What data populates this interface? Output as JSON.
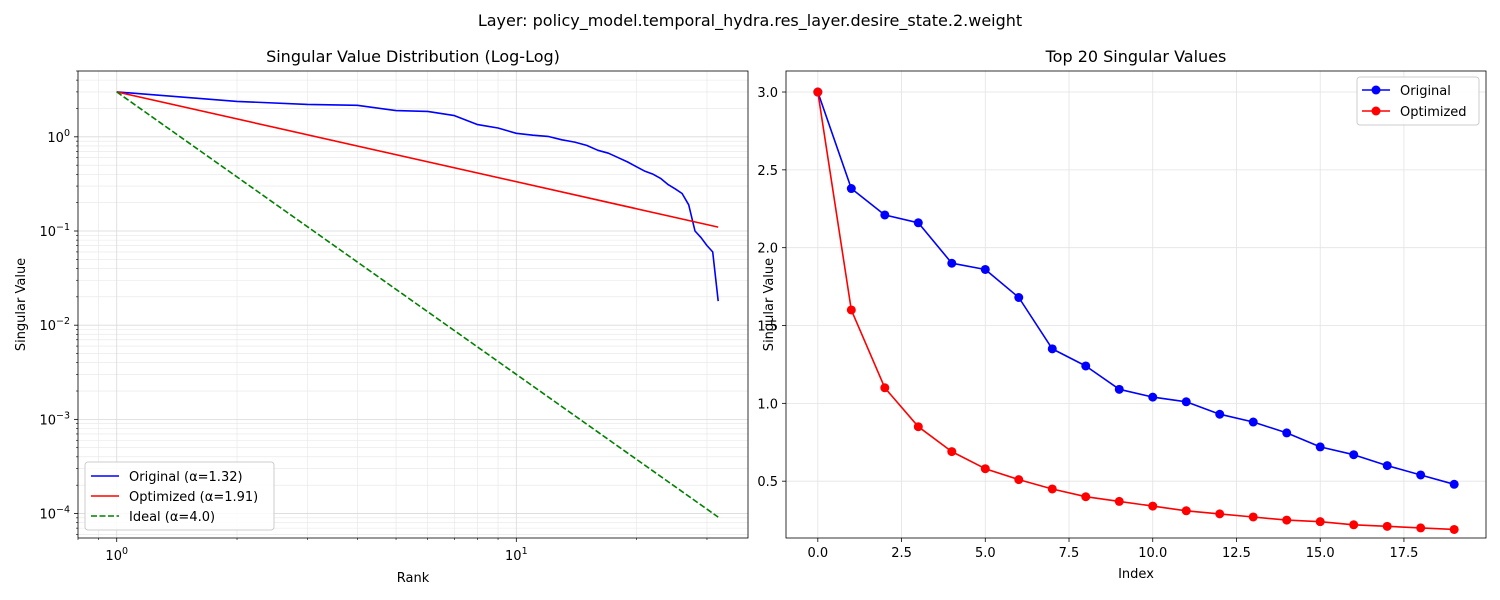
{
  "figure_title": "Layer: policy_model.temporal_hydra.res_layer.desire_state.2.weight",
  "chart_data": [
    {
      "type": "line",
      "title": "Singular Value Distribution (Log-Log)",
      "xlabel": "Rank",
      "ylabel": "Singular Value",
      "xscale": "log",
      "yscale": "log",
      "xlim": [
        0.8,
        38
      ],
      "ylim": [
        5.5e-05,
        5
      ],
      "grid": true,
      "legend": "lower-left",
      "x_ticks": [
        {
          "value": 1,
          "base": "10",
          "exp": "0"
        },
        {
          "value": 10,
          "base": "10",
          "exp": "1"
        }
      ],
      "y_ticks": [
        {
          "value": 0.0001,
          "base": "10",
          "exp": "−4"
        },
        {
          "value": 0.001,
          "base": "10",
          "exp": "−3"
        },
        {
          "value": 0.01,
          "base": "10",
          "exp": "−2"
        },
        {
          "value": 0.1,
          "base": "10",
          "exp": "−1"
        },
        {
          "value": 1,
          "base": "10",
          "exp": "0"
        }
      ],
      "series": [
        {
          "name": "Original (α=1.32)",
          "color": "#0000ff",
          "dash": "solid",
          "x": [
            1,
            2,
            3,
            4,
            5,
            6,
            7,
            8,
            9,
            10,
            11,
            12,
            13,
            14,
            15,
            16,
            17,
            18,
            19,
            20,
            21,
            22,
            23,
            24,
            25,
            26,
            27,
            28,
            29,
            30,
            31,
            32
          ],
          "y": [
            3.0,
            2.38,
            2.21,
            2.16,
            1.9,
            1.86,
            1.68,
            1.35,
            1.24,
            1.09,
            1.04,
            1.01,
            0.93,
            0.88,
            0.81,
            0.72,
            0.67,
            0.6,
            0.54,
            0.48,
            0.43,
            0.4,
            0.36,
            0.31,
            0.28,
            0.25,
            0.19,
            0.1,
            0.085,
            0.07,
            0.06,
            0.018
          ]
        },
        {
          "name": "Optimized (α=1.91)",
          "color": "#ff0000",
          "dash": "solid",
          "x": [
            1,
            32
          ],
          "y": [
            3.0,
            0.1099
          ]
        },
        {
          "name": "Ideal (α=4.0)",
          "color": "#008000",
          "dash": "dashed",
          "x": [
            1,
            32
          ],
          "y": [
            3.0,
            9.16e-05
          ]
        }
      ]
    },
    {
      "type": "line",
      "title": "Top 20 Singular Values",
      "xlabel": "Index",
      "ylabel": "Singular Value",
      "xlim": [
        -0.95,
        19.95
      ],
      "ylim": [
        0.135,
        3.135
      ],
      "grid": true,
      "legend": "top-right",
      "x_ticks": [
        "0.0",
        "2.5",
        "5.0",
        "7.5",
        "10.0",
        "12.5",
        "15.0",
        "17.5"
      ],
      "y_ticks": [
        "0.5",
        "1.0",
        "1.5",
        "2.0",
        "2.5",
        "3.0"
      ],
      "series": [
        {
          "name": "Original",
          "color": "#0000ff",
          "marker": "circle",
          "x": [
            0,
            1,
            2,
            3,
            4,
            5,
            6,
            7,
            8,
            9,
            10,
            11,
            12,
            13,
            14,
            15,
            16,
            17,
            18,
            19
          ],
          "y": [
            3.0,
            2.38,
            2.21,
            2.16,
            1.9,
            1.86,
            1.68,
            1.35,
            1.24,
            1.09,
            1.04,
            1.01,
            0.93,
            0.88,
            0.81,
            0.72,
            0.67,
            0.6,
            0.54,
            0.48
          ]
        },
        {
          "name": "Optimized",
          "color": "#ff0000",
          "marker": "circle",
          "x": [
            0,
            1,
            2,
            3,
            4,
            5,
            6,
            7,
            8,
            9,
            10,
            11,
            12,
            13,
            14,
            15,
            16,
            17,
            18,
            19
          ],
          "y": [
            3.0,
            1.6,
            1.1,
            0.85,
            0.69,
            0.58,
            0.51,
            0.45,
            0.4,
            0.37,
            0.34,
            0.31,
            0.29,
            0.27,
            0.25,
            0.24,
            0.22,
            0.21,
            0.2,
            0.19
          ]
        }
      ]
    }
  ]
}
